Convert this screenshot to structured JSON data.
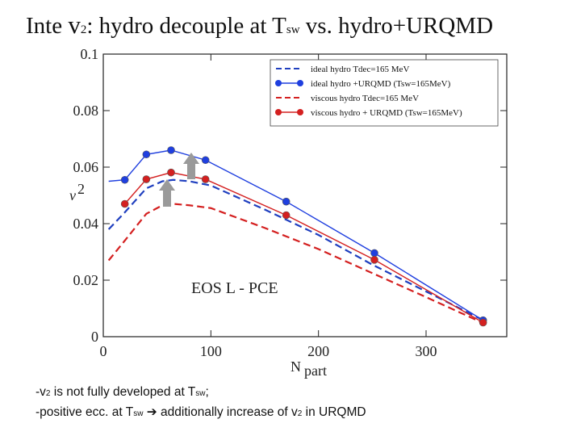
{
  "slide": {
    "title_prefix": "Inte ",
    "title_v": "v",
    "title_v_sub": "2",
    "title_mid1": ":  hydro decouple at T",
    "title_sub1": "sw",
    "title_mid2": "  vs. hydro+URQMD",
    "note1_a": "-v",
    "note1_sub": "2",
    "note1_b": " is not fully developed at T",
    "note1_sub2": "sw",
    "note1_c": ";",
    "note2_a": "-positive ecc.  at T",
    "note2_sub": "sw",
    "note2_arrow": " ➔ ",
    "note2_b": "additionally increase of v",
    "note2_sub2": "2",
    "note2_c": " in URQMD"
  },
  "chart_data": {
    "type": "line",
    "xlabel": "N",
    "xlabel_sub": "part",
    "ylabel": "v",
    "ylabel_sub": "2",
    "xlim": [
      0,
      375
    ],
    "ylim": [
      0,
      0.1
    ],
    "xticks": [
      0,
      100,
      200,
      300
    ],
    "yticks": [
      0,
      0.02,
      0.04,
      0.06,
      0.08,
      0.1
    ],
    "ytick_labels": [
      "0",
      "0.02",
      "0.04",
      "0.06",
      "0.08",
      "0.1"
    ],
    "annotation": "EOS L - PCE",
    "legend_position": "top-right",
    "series": [
      {
        "name": "ideal hydro Tdec=165 MeV",
        "color": "#1f3fbf",
        "style": "dashed",
        "x": [
          5,
          20,
          40,
          55,
          65,
          80,
          100,
          150,
          200,
          250,
          300,
          355
        ],
        "y": [
          0.038,
          0.044,
          0.0525,
          0.055,
          0.0555,
          0.055,
          0.0535,
          0.045,
          0.036,
          0.0255,
          0.016,
          0.0055
        ]
      },
      {
        "name": "ideal hydro +URQMD (Tsw=165MeV)",
        "color": "#1f3fdf",
        "style": "solid-marker",
        "x": [
          5,
          20,
          40,
          63,
          95,
          170,
          252,
          353
        ],
        "y": [
          0.055,
          0.0555,
          0.0645,
          0.066,
          0.0625,
          0.0478,
          0.0296,
          0.0058
        ]
      },
      {
        "name": "viscous hydro Tdec=165 MeV",
        "color": "#d42020",
        "style": "dashed",
        "x": [
          5,
          20,
          40,
          55,
          65,
          80,
          100,
          150,
          200,
          250,
          300,
          355
        ],
        "y": [
          0.027,
          0.034,
          0.0435,
          0.0465,
          0.047,
          0.0465,
          0.0455,
          0.0385,
          0.031,
          0.0225,
          0.014,
          0.0045
        ]
      },
      {
        "name": "viscous hydro + URQMD (Tsw=165MeV)",
        "color": "#d42020",
        "style": "solid-marker",
        "x": [
          20,
          40,
          63,
          95,
          170,
          252,
          353
        ],
        "y": [
          0.047,
          0.0557,
          0.0581,
          0.0557,
          0.043,
          0.0272,
          0.005
        ]
      }
    ]
  }
}
